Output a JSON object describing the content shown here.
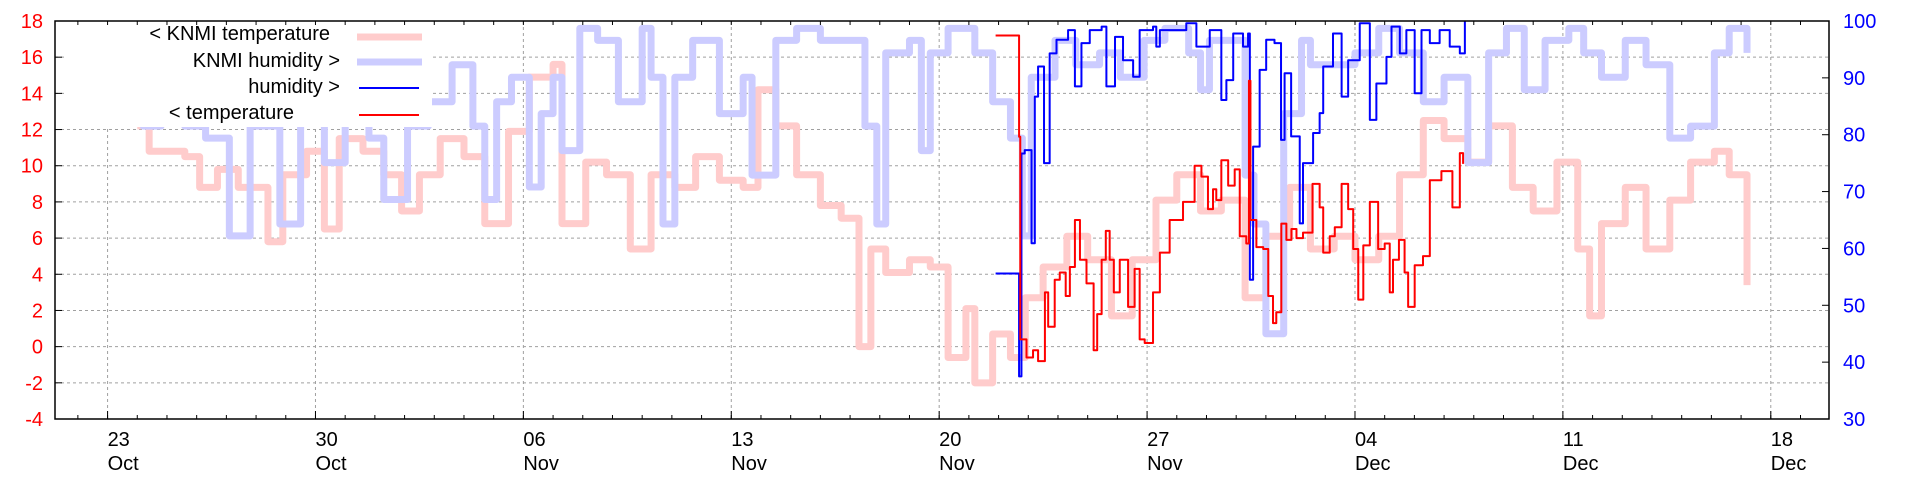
{
  "chart_data": {
    "type": "line",
    "title": "",
    "x_unit": "days relative to 27 Nov",
    "xlim": [
      -36.77,
      22.96
    ],
    "y_left": {
      "range": [
        -4,
        18
      ],
      "ticks": [
        -4,
        -2,
        0,
        2,
        4,
        6,
        8,
        10,
        12,
        14,
        16,
        18
      ],
      "color": "#ff0000"
    },
    "y_right": {
      "range": [
        30,
        100
      ],
      "ticks": [
        30,
        40,
        50,
        60,
        70,
        80,
        90,
        100
      ],
      "color": "#0000ff"
    },
    "x_ticks": [
      {
        "x": -35,
        "day": "23",
        "month": "Oct"
      },
      {
        "x": -28,
        "day": "30",
        "month": "Oct"
      },
      {
        "x": -21,
        "day": "06",
        "month": "Nov"
      },
      {
        "x": -14,
        "day": "13",
        "month": "Nov"
      },
      {
        "x": -7,
        "day": "20",
        "month": "Nov"
      },
      {
        "x": 0,
        "day": "27",
        "month": "Nov"
      },
      {
        "x": 7,
        "day": "04",
        "month": "Dec"
      },
      {
        "x": 14,
        "day": "11",
        "month": "Dec"
      },
      {
        "x": 21,
        "day": "18",
        "month": "Dec"
      }
    ],
    "grid": true,
    "legend_position": "top-left",
    "series": [
      {
        "name": "< KNMI temperature",
        "axis": "left",
        "color": "#ffcccc",
        "width": "thick",
        "x": [
          -34.0,
          -33.6,
          -33.0,
          -32.4,
          -31.9,
          -31.3,
          -30.6,
          -29.6,
          -29.1,
          -28.3,
          -27.7,
          -27.2,
          -26.4,
          -25.7,
          -25.1,
          -24.5,
          -23.8,
          -23.0,
          -22.3,
          -21.5,
          -20.8,
          -20.0,
          -19.7,
          -18.9,
          -18.2,
          -17.4,
          -16.7,
          -15.9,
          -15.2,
          -14.4,
          -13.6,
          -13.1,
          -12.5,
          -11.8,
          -11.0,
          -10.3,
          -9.7,
          -9.3,
          -8.8,
          -8.0,
          -7.3,
          -6.7,
          -6.1,
          -5.8,
          -5.2,
          -4.6,
          -4.1,
          -3.5,
          -2.7,
          -2.0,
          -1.2,
          -0.5,
          0.3,
          1.0,
          1.8,
          2.5,
          3.3,
          4.0,
          4.8,
          5.5,
          6.3,
          7.0,
          7.8,
          8.5,
          9.3,
          10.0,
          10.8,
          11.5,
          12.3,
          13.0,
          13.8,
          14.5,
          14.9,
          15.3,
          16.1,
          16.8,
          17.6,
          18.3,
          19.1,
          19.6,
          20.2
        ],
        "y": [
          12.2,
          10.8,
          10.8,
          10.5,
          8.8,
          9.8,
          8.8,
          5.8,
          9.5,
          10.8,
          6.5,
          11.5,
          10.8,
          9.5,
          7.5,
          9.5,
          11.5,
          10.5,
          6.8,
          11.9,
          14.9,
          15.6,
          6.8,
          10.2,
          9.5,
          5.4,
          9.5,
          8.8,
          10.5,
          9.2,
          8.8,
          14.2,
          12.2,
          9.5,
          7.8,
          7.1,
          0.0,
          5.4,
          4.1,
          4.8,
          4.4,
          -0.6,
          2.1,
          -2.0,
          0.7,
          -0.6,
          2.7,
          4.4,
          6.1,
          4.8,
          1.7,
          4.8,
          8.1,
          9.5,
          7.5,
          8.1,
          2.7,
          6.1,
          8.8,
          5.4,
          6.1,
          4.8,
          6.1,
          9.5,
          12.5,
          11.5,
          10.2,
          12.2,
          8.8,
          7.5,
          10.2,
          5.4,
          1.7,
          6.8,
          8.8,
          5.4,
          8.1,
          10.2,
          10.8,
          9.5,
          3.4
        ]
      },
      {
        "name": "KNMI humidity >",
        "axis": "right",
        "color": "#ccccff",
        "width": "thick",
        "x": [
          -34.1,
          -33.8,
          -33.2,
          -32.4,
          -31.7,
          -30.9,
          -30.2,
          -29.2,
          -28.5,
          -27.7,
          -27.0,
          -26.2,
          -25.7,
          -24.9,
          -24.2,
          -23.4,
          -22.7,
          -22.3,
          -21.9,
          -21.4,
          -20.8,
          -20.4,
          -20.0,
          -19.7,
          -19.1,
          -18.5,
          -17.8,
          -17.0,
          -16.7,
          -16.3,
          -15.9,
          -15.3,
          -14.8,
          -14.4,
          -13.6,
          -13.3,
          -12.5,
          -11.8,
          -11.0,
          -10.3,
          -9.5,
          -9.1,
          -8.8,
          -8.0,
          -7.6,
          -7.3,
          -6.7,
          -6.1,
          -5.8,
          -5.2,
          -4.6,
          -4.2,
          -3.9,
          -3.1,
          -2.4,
          -1.6,
          -0.9,
          -0.1,
          0.6,
          1.4,
          1.8,
          2.1,
          2.9,
          3.3,
          3.6,
          4.0,
          4.6,
          5.2,
          5.5,
          6.3,
          7.0,
          7.8,
          8.5,
          9.3,
          10.0,
          10.8,
          11.5,
          12.1,
          12.7,
          13.4,
          14.2,
          14.7,
          15.3,
          16.1,
          16.8,
          17.6,
          18.3,
          19.1,
          19.6,
          20.2
        ],
        "y": [
          94.4,
          81.5,
          87.9,
          81.5,
          79.4,
          62.2,
          81.5,
          64.3,
          88.0,
          75.1,
          85.8,
          79.4,
          68.6,
          81.5,
          85.8,
          92.3,
          81.5,
          68.6,
          85.8,
          90.1,
          70.8,
          83.7,
          90.1,
          77.2,
          98.7,
          96.6,
          85.8,
          98.7,
          90.1,
          64.3,
          90.1,
          96.6,
          96.6,
          83.7,
          90.1,
          72.9,
          96.6,
          98.7,
          96.6,
          96.6,
          81.5,
          64.3,
          94.4,
          96.6,
          77.2,
          94.4,
          98.7,
          98.7,
          94.4,
          85.8,
          79.4,
          62.2,
          90.1,
          96.6,
          92.3,
          94.4,
          90.1,
          96.6,
          98.7,
          94.4,
          87.9,
          96.6,
          96.6,
          72.9,
          64.3,
          45.0,
          83.7,
          96.6,
          92.3,
          92.3,
          94.4,
          98.7,
          94.4,
          85.8,
          90.1,
          75.1,
          94.4,
          98.7,
          87.9,
          96.6,
          98.7,
          94.4,
          90.1,
          96.6,
          92.3,
          79.4,
          81.5,
          94.4,
          98.7,
          94.4
        ]
      },
      {
        "name": "humidity >",
        "axis": "right",
        "color": "#0000ff",
        "width": "thin",
        "x": [
          -5.1,
          -4.31,
          -4.23,
          -4.12,
          -3.89,
          -3.78,
          -3.67,
          -3.47,
          -3.28,
          -3.05,
          -2.66,
          -2.43,
          -2.21,
          -1.93,
          -1.53,
          -1.37,
          -1.08,
          -0.81,
          -0.47,
          -0.25,
          0.2,
          0.31,
          0.43,
          1.32,
          1.66,
          2.11,
          2.5,
          2.67,
          2.9,
          3.23,
          3.4,
          3.46,
          3.57,
          3.79,
          4.01,
          4.29,
          4.51,
          4.63,
          4.85,
          5.14,
          5.25,
          5.59,
          5.81,
          5.93,
          6.26,
          6.55,
          6.77,
          7.16,
          7.5,
          7.72,
          8.06,
          8.23,
          8.51,
          8.73,
          9.01,
          9.24,
          9.52,
          9.85,
          10.19,
          10.53,
          10.7
        ],
        "y": [
          55.6,
          37.5,
          76.7,
          77.3,
          60.9,
          86.7,
          92.0,
          75.0,
          94.3,
          96.7,
          98.4,
          88.5,
          96.1,
          98.4,
          99.0,
          88.5,
          97.2,
          93.1,
          90.2,
          98.4,
          99.0,
          95.5,
          98.4,
          99.6,
          95.5,
          98.4,
          86.1,
          89.6,
          97.8,
          95.5,
          97.8,
          54.5,
          77.9,
          91.4,
          96.7,
          96.1,
          79.1,
          90.8,
          79.7,
          64.4,
          75.0,
          80.3,
          83.8,
          92.0,
          97.8,
          86.7,
          93.1,
          99.6,
          82.6,
          89.0,
          93.7,
          99.0,
          94.3,
          98.4,
          87.3,
          98.4,
          96.1,
          98.4,
          95.5,
          94.3,
          100.0
        ]
      },
      {
        "name": "< temperature",
        "axis": "left",
        "color": "#ff0000",
        "width": "thin",
        "x": [
          -5.1,
          -4.31,
          -4.27,
          -4.06,
          -3.84,
          -3.67,
          -3.44,
          -3.33,
          -3.11,
          -2.94,
          -2.74,
          -2.6,
          -2.43,
          -2.26,
          -2.04,
          -1.8,
          -1.68,
          -1.53,
          -1.39,
          -1.26,
          -1.12,
          -0.92,
          -0.64,
          -0.42,
          -0.25,
          -0.08,
          0.2,
          0.43,
          0.76,
          1.21,
          1.6,
          1.83,
          2.05,
          2.22,
          2.33,
          2.5,
          2.73,
          2.95,
          3.12,
          3.34,
          3.43,
          3.48,
          3.68,
          3.91,
          4.08,
          4.24,
          4.35,
          4.52,
          4.69,
          4.86,
          5.03,
          5.25,
          5.57,
          5.81,
          5.93,
          6.15,
          6.32,
          6.55,
          6.77,
          6.94,
          7.11,
          7.28,
          7.5,
          7.78,
          8.0,
          8.17,
          8.28,
          8.48,
          8.67,
          8.79,
          9.01,
          9.29,
          9.52,
          9.91,
          10.28,
          10.53,
          10.64
        ],
        "y": [
          17.2,
          11.6,
          0.4,
          -0.6,
          -0.2,
          -0.8,
          3.0,
          1.1,
          3.7,
          4.1,
          2.8,
          4.4,
          7.0,
          4.8,
          3.5,
          -0.2,
          1.8,
          4.8,
          6.4,
          4.8,
          3.0,
          4.8,
          2.2,
          4.3,
          0.4,
          0.2,
          3.0,
          5.2,
          7.0,
          8.0,
          10.0,
          9.4,
          7.6,
          8.7,
          8.1,
          10.3,
          8.9,
          9.8,
          6.1,
          5.7,
          14.7,
          7.0,
          5.5,
          5.4,
          2.8,
          1.3,
          1.9,
          6.8,
          5.9,
          6.5,
          6.0,
          6.3,
          9.0,
          7.7,
          5.2,
          6.1,
          6.6,
          9.0,
          7.6,
          5.4,
          2.6,
          5.6,
          8.0,
          5.4,
          5.7,
          3.0,
          4.8,
          5.9,
          4.1,
          2.2,
          4.5,
          5.0,
          9.2,
          9.7,
          7.7,
          10.7,
          10.1
        ]
      }
    ]
  }
}
